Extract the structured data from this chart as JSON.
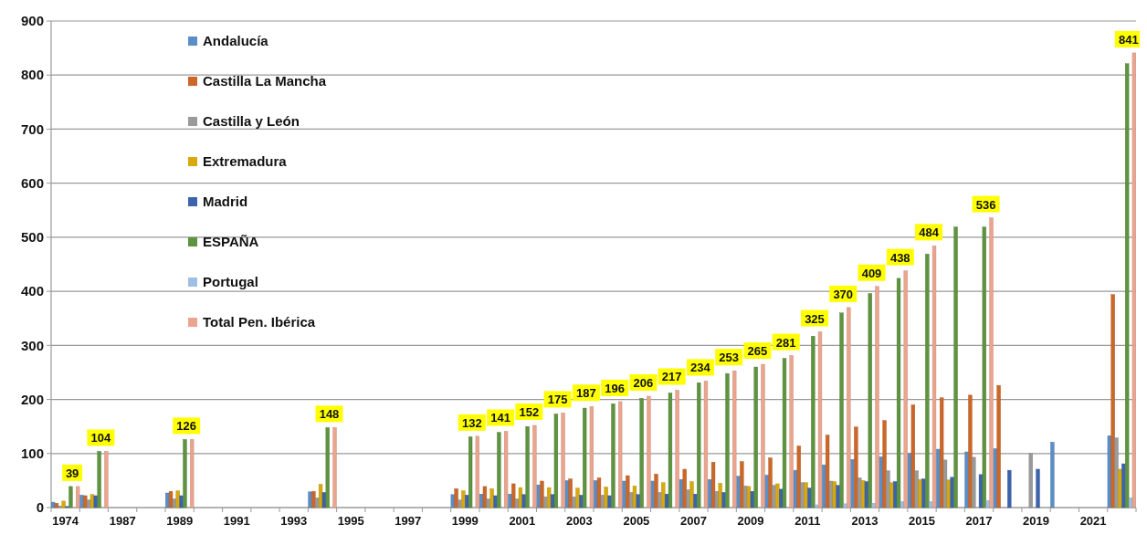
{
  "chart_data": {
    "type": "bar",
    "categories": [
      "1974",
      null,
      "1987",
      null,
      "1989",
      null,
      "1991",
      null,
      "1993",
      null,
      "1995",
      null,
      "1997",
      null,
      "1999",
      null,
      "2001",
      null,
      "2003",
      null,
      "2005",
      null,
      "2007",
      null,
      "2009",
      null,
      "2011",
      null,
      "2013",
      null,
      "2015",
      null,
      "2017",
      null,
      "2019",
      null,
      "2021",
      null
    ],
    "series": [
      {
        "name": "Andalucía",
        "color": "#5b8ec6",
        "values": [
          10,
          23,
          null,
          null,
          27,
          null,
          null,
          null,
          null,
          29,
          null,
          null,
          null,
          null,
          24,
          25,
          25,
          42,
          50,
          50,
          49,
          49,
          52,
          52,
          58,
          60,
          69,
          79,
          89,
          94,
          100,
          108,
          103,
          109,
          null,
          121,
          null,
          133
        ]
      },
      {
        "name": "Castilla La Mancha",
        "color": "#cd6728",
        "values": [
          8,
          22,
          null,
          null,
          30,
          null,
          null,
          null,
          null,
          30,
          null,
          null,
          null,
          null,
          35,
          39,
          44,
          49,
          53,
          55,
          59,
          62,
          71,
          84,
          85,
          92,
          114,
          134,
          149,
          161,
          190,
          203,
          208,
          226,
          null,
          null,
          null,
          394
        ]
      },
      {
        "name": "Castilla y León",
        "color": "#9a9a9a",
        "values": [
          3,
          14,
          null,
          null,
          16,
          null,
          null,
          null,
          null,
          18,
          null,
          null,
          null,
          null,
          14,
          16,
          16,
          20,
          20,
          23,
          28,
          28,
          33,
          30,
          40,
          41,
          46,
          49,
          55,
          68,
          68,
          88,
          93,
          null,
          100,
          null,
          null,
          129
        ]
      },
      {
        "name": "Extremadura",
        "color": "#d9a90c",
        "values": [
          12,
          24,
          null,
          null,
          31,
          null,
          null,
          null,
          null,
          43,
          null,
          null,
          null,
          null,
          31,
          35,
          37,
          37,
          36,
          38,
          40,
          46,
          48,
          45,
          39,
          44,
          46,
          48,
          50,
          46,
          52,
          51,
          null,
          null,
          null,
          null,
          null,
          71
        ]
      },
      {
        "name": "Madrid",
        "color": "#3b64ad",
        "values": [
          2,
          22,
          null,
          null,
          22,
          null,
          null,
          null,
          null,
          28,
          null,
          null,
          null,
          null,
          23,
          22,
          24,
          24,
          23,
          22,
          24,
          25,
          25,
          28,
          30,
          34,
          36,
          41,
          48,
          48,
          53,
          56,
          61,
          69,
          71,
          null,
          null,
          81
        ]
      },
      {
        "name": "ESPAÑA",
        "color": "#5e9440",
        "values": [
          39,
          104,
          null,
          null,
          126,
          null,
          null,
          null,
          null,
          148,
          null,
          null,
          null,
          null,
          131,
          139,
          150,
          173,
          184,
          192,
          202,
          212,
          231,
          248,
          260,
          276,
          317,
          360,
          396,
          424,
          469,
          519,
          519,
          null,
          null,
          null,
          null,
          821
        ]
      },
      {
        "name": "Portugal",
        "color": "#9fc0e4",
        "values": [
          null,
          null,
          null,
          null,
          null,
          null,
          null,
          null,
          null,
          null,
          null,
          null,
          null,
          null,
          null,
          null,
          null,
          null,
          null,
          null,
          null,
          null,
          null,
          null,
          null,
          null,
          5,
          7,
          8,
          11,
          11,
          null,
          13,
          null,
          null,
          null,
          null,
          18
        ]
      },
      {
        "name": "Total Pen. Ibérica",
        "color": "#eba58e",
        "values": [
          39,
          104,
          null,
          null,
          126,
          null,
          null,
          null,
          null,
          148,
          null,
          null,
          null,
          null,
          132,
          141,
          152,
          175,
          187,
          196,
          206,
          217,
          234,
          253,
          265,
          281,
          325,
          370,
          409,
          438,
          484,
          null,
          536,
          null,
          null,
          null,
          null,
          841
        ],
        "value_labels": [
          "39",
          "104",
          null,
          null,
          "126",
          null,
          null,
          null,
          null,
          "148",
          null,
          null,
          null,
          null,
          "132",
          "141",
          "152",
          "175",
          "187",
          "196",
          "206",
          "217",
          "234",
          "253",
          "265",
          "281",
          "325",
          "370",
          "409",
          "438",
          "484",
          null,
          "536",
          null,
          null,
          null,
          null,
          "841"
        ]
      }
    ],
    "ylim": [
      0,
      900
    ],
    "yticks": [
      0,
      100,
      200,
      300,
      400,
      500,
      600,
      700,
      800,
      900
    ],
    "grid": "y",
    "legend": "top left"
  }
}
